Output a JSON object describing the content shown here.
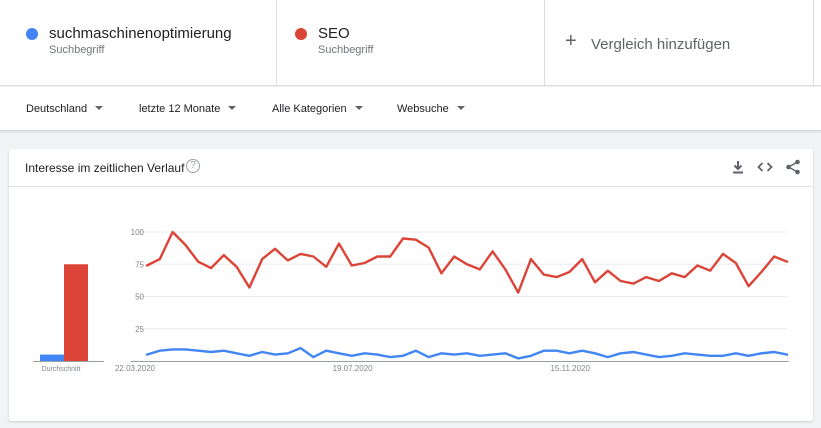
{
  "terms": [
    {
      "name": "suchmaschinenoptimierung",
      "sub": "Suchbegriff",
      "color": "#4285f4"
    },
    {
      "name": "SEO",
      "sub": "Suchbegriff",
      "color": "#db4437"
    }
  ],
  "add_compare": {
    "plus": "+",
    "label": "Vergleich hinzufügen"
  },
  "filters": {
    "region": "Deutschland",
    "time": "letzte 12 Monate",
    "category": "Alle Kategorien",
    "type": "Websuche"
  },
  "card": {
    "title": "Interesse im zeitlichen Verlauf",
    "help": "?",
    "icons": [
      "download-icon",
      "embed-icon",
      "share-icon"
    ]
  },
  "chart_data": {
    "type": "line",
    "ylim": [
      0,
      100
    ],
    "yticks": [
      25,
      50,
      75,
      100
    ],
    "x_tick_labels": [
      {
        "index": 0,
        "label": "22.03.2020"
      },
      {
        "index": 17,
        "label": "19.07.2020"
      },
      {
        "index": 34,
        "label": "15.11.2020"
      }
    ],
    "averages": {
      "label": "Durchschnitt",
      "values": [
        5,
        75
      ]
    },
    "series": [
      {
        "name": "suchmaschinenoptimierung",
        "color": "#4285f4",
        "values": [
          5,
          8,
          9,
          9,
          8,
          7,
          8,
          6,
          4,
          7,
          5,
          6,
          10,
          3,
          8,
          6,
          4,
          6,
          5,
          3,
          4,
          8,
          3,
          6,
          5,
          6,
          4,
          5,
          6,
          2,
          4,
          8,
          8,
          6,
          8,
          6,
          3,
          6,
          7,
          5,
          3,
          4,
          6,
          5,
          4,
          4,
          6,
          4,
          6,
          7,
          5
        ]
      },
      {
        "name": "SEO",
        "color": "#db4437",
        "values": [
          74,
          79,
          100,
          90,
          77,
          72,
          82,
          73,
          57,
          79,
          87,
          78,
          83,
          81,
          73,
          91,
          74,
          76,
          81,
          81,
          95,
          94,
          88,
          68,
          81,
          75,
          71,
          85,
          71,
          53,
          79,
          67,
          65,
          69,
          79,
          61,
          70,
          62,
          60,
          65,
          62,
          68,
          65,
          74,
          70,
          83,
          76,
          58,
          69,
          81,
          77
        ]
      }
    ]
  }
}
